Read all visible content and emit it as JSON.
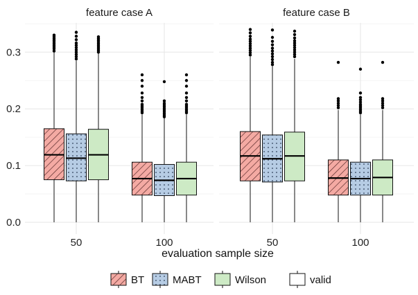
{
  "chart_data": {
    "type": "box",
    "xlabel": "evaluation sample size",
    "ylabel": "",
    "ylim": [
      0,
      0.35
    ],
    "yticks": [
      "0.0",
      "0.1",
      "0.2",
      "0.3"
    ],
    "categories": [
      "50",
      "100"
    ],
    "facets": [
      {
        "title": "feature case A",
        "groups": [
          {
            "category": "50",
            "boxes": [
              {
                "series": "BT",
                "min": 0.0,
                "q1": 0.075,
                "median": 0.119,
                "q3": 0.165,
                "whisker_high": 0.3,
                "outliers": [
                  0.302,
                  0.306,
                  0.309,
                  0.312,
                  0.315,
                  0.318,
                  0.321,
                  0.324,
                  0.327,
                  0.33
                ]
              },
              {
                "series": "MABT",
                "min": 0.0,
                "q1": 0.073,
                "median": 0.113,
                "q3": 0.156,
                "whisker_high": 0.285,
                "outliers": [
                  0.288,
                  0.292,
                  0.296,
                  0.3,
                  0.304,
                  0.308,
                  0.312,
                  0.316,
                  0.322,
                  0.328,
                  0.335
                ]
              },
              {
                "series": "Wilson",
                "min": 0.0,
                "q1": 0.075,
                "median": 0.119,
                "q3": 0.164,
                "whisker_high": 0.298,
                "outliers": [
                  0.3,
                  0.303,
                  0.306,
                  0.309,
                  0.312,
                  0.315,
                  0.318,
                  0.321,
                  0.324,
                  0.327
                ]
              }
            ]
          },
          {
            "category": "100",
            "boxes": [
              {
                "series": "BT",
                "min": 0.0,
                "q1": 0.048,
                "median": 0.077,
                "q3": 0.106,
                "whisker_high": 0.19,
                "outliers": [
                  0.193,
                  0.196,
                  0.199,
                  0.202,
                  0.205,
                  0.208,
                  0.214,
                  0.22,
                  0.228,
                  0.24,
                  0.25,
                  0.26
                ]
              },
              {
                "series": "MABT",
                "min": 0.0,
                "q1": 0.047,
                "median": 0.074,
                "q3": 0.102,
                "whisker_high": 0.184,
                "outliers": [
                  0.186,
                  0.189,
                  0.192,
                  0.195,
                  0.198,
                  0.201,
                  0.204,
                  0.207,
                  0.21,
                  0.214,
                  0.248
                ]
              },
              {
                "series": "Wilson",
                "min": 0.0,
                "q1": 0.048,
                "median": 0.077,
                "q3": 0.106,
                "whisker_high": 0.19,
                "outliers": [
                  0.193,
                  0.196,
                  0.199,
                  0.202,
                  0.205,
                  0.208,
                  0.214,
                  0.22,
                  0.228,
                  0.24,
                  0.25,
                  0.26
                ]
              }
            ]
          }
        ]
      },
      {
        "title": "feature case B",
        "groups": [
          {
            "category": "50",
            "boxes": [
              {
                "series": "BT",
                "min": 0.0,
                "q1": 0.073,
                "median": 0.117,
                "q3": 0.16,
                "whisker_high": 0.292,
                "outliers": [
                  0.295,
                  0.299,
                  0.303,
                  0.307,
                  0.311,
                  0.315,
                  0.319,
                  0.323,
                  0.328,
                  0.334,
                  0.34
                ]
              },
              {
                "series": "MABT",
                "min": 0.0,
                "q1": 0.071,
                "median": 0.112,
                "q3": 0.154,
                "whisker_high": 0.275,
                "outliers": [
                  0.278,
                  0.282,
                  0.287,
                  0.292,
                  0.297,
                  0.302,
                  0.307,
                  0.313,
                  0.319,
                  0.326,
                  0.339
                ]
              },
              {
                "series": "Wilson",
                "min": 0.0,
                "q1": 0.073,
                "median": 0.117,
                "q3": 0.159,
                "whisker_high": 0.288,
                "outliers": [
                  0.292,
                  0.296,
                  0.3,
                  0.304,
                  0.308,
                  0.312,
                  0.316,
                  0.32,
                  0.325,
                  0.331,
                  0.337
                ]
              }
            ]
          },
          {
            "category": "100",
            "boxes": [
              {
                "series": "BT",
                "min": 0.0,
                "q1": 0.048,
                "median": 0.078,
                "q3": 0.11,
                "whisker_high": 0.198,
                "outliers": [
                  0.202,
                  0.206,
                  0.21,
                  0.214,
                  0.218,
                  0.282
                ]
              },
              {
                "series": "MABT",
                "min": 0.0,
                "q1": 0.048,
                "median": 0.077,
                "q3": 0.106,
                "whisker_high": 0.19,
                "outliers": [
                  0.193,
                  0.196,
                  0.199,
                  0.202,
                  0.205,
                  0.208,
                  0.212,
                  0.216,
                  0.22,
                  0.228,
                  0.27
                ]
              },
              {
                "series": "Wilson",
                "min": 0.0,
                "q1": 0.048,
                "median": 0.079,
                "q3": 0.11,
                "whisker_high": 0.198,
                "outliers": [
                  0.202,
                  0.206,
                  0.21,
                  0.214,
                  0.218,
                  0.282
                ]
              }
            ]
          }
        ]
      }
    ],
    "series": [
      {
        "name": "BT",
        "fill": "#f4aaa3",
        "pattern": "stripes"
      },
      {
        "name": "MABT",
        "fill": "#b6cce4",
        "pattern": "dots"
      },
      {
        "name": "Wilson",
        "fill": "#cdeac5",
        "pattern": "none"
      }
    ],
    "legend": {
      "position": "bottom",
      "items": [
        "BT",
        "MABT",
        "Wilson"
      ],
      "validity_label": "valid"
    },
    "grid": true
  }
}
